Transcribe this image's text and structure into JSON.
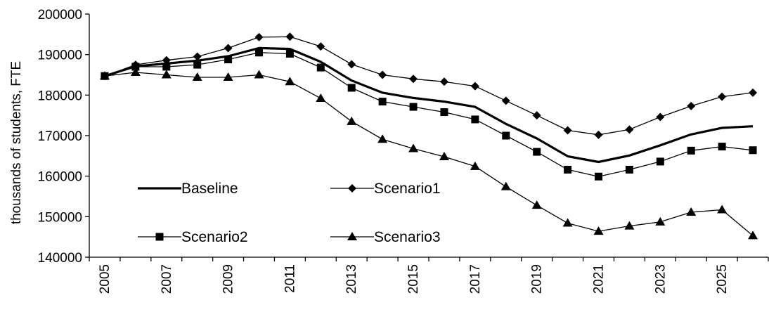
{
  "chart_data": {
    "type": "line",
    "title": "",
    "xlabel": "",
    "ylabel": "thousands of students, FTE",
    "ylim": [
      140000,
      200000
    ],
    "yticks": [
      140000,
      150000,
      160000,
      170000,
      180000,
      190000,
      200000
    ],
    "x": [
      2005,
      2006,
      2007,
      2008,
      2009,
      2010,
      2011,
      2012,
      2013,
      2014,
      2015,
      2016,
      2017,
      2018,
      2019,
      2020,
      2021,
      2022,
      2023,
      2024,
      2025,
      2026
    ],
    "xtick_labels": [
      "2005",
      "2007",
      "2009",
      "2011",
      "2013",
      "2015",
      "2017",
      "2019",
      "2021",
      "2023",
      "2025"
    ],
    "grid": false,
    "legend_position": "inside-lower-left",
    "series": [
      {
        "name": "Baseline",
        "marker": "none",
        "line_width": "thick",
        "values": [
          184700,
          187100,
          187800,
          188500,
          189600,
          191600,
          191400,
          188200,
          183600,
          180600,
          179300,
          178400,
          177100,
          172900,
          169300,
          164900,
          163500,
          165100,
          167600,
          170300,
          171900,
          172300
        ]
      },
      {
        "name": "Scenario1",
        "marker": "diamond",
        "line_width": "thin",
        "values": [
          184700,
          187500,
          188600,
          189500,
          191600,
          194300,
          194400,
          192000,
          187600,
          185000,
          184000,
          183300,
          182200,
          178600,
          175000,
          171300,
          170200,
          171500,
          174600,
          177300,
          179600,
          180600
        ]
      },
      {
        "name": "Scenario2",
        "marker": "square",
        "line_width": "thin",
        "values": [
          184700,
          187000,
          187000,
          187500,
          188800,
          190500,
          190200,
          186800,
          181800,
          178400,
          177100,
          175800,
          174000,
          170000,
          166000,
          161600,
          159900,
          161600,
          163600,
          166300,
          167300,
          166400
        ]
      },
      {
        "name": "Scenario3",
        "marker": "triangle",
        "line_width": "thin",
        "values": [
          184700,
          185600,
          185000,
          184400,
          184400,
          185000,
          183300,
          179200,
          173500,
          169100,
          166800,
          164800,
          162400,
          157400,
          152800,
          148400,
          146400,
          147700,
          148700,
          151100,
          151700,
          145300
        ]
      }
    ]
  }
}
